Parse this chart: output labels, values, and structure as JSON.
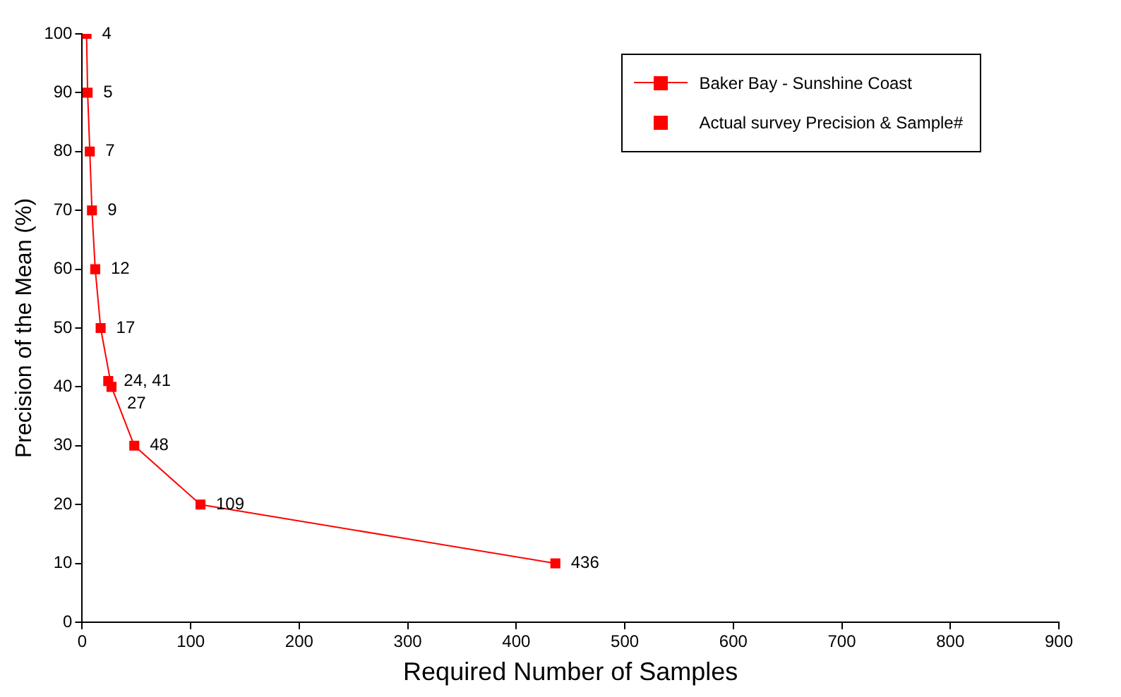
{
  "chart_data": {
    "type": "line",
    "xlabel": "Required Number of Samples",
    "ylabel": "Precision of the Mean (%)",
    "xlim": [
      0,
      900
    ],
    "xticks": [
      0,
      100,
      200,
      300,
      400,
      500,
      600,
      700,
      800,
      900
    ],
    "ylim": [
      0,
      100
    ],
    "yticks": [
      0,
      10,
      20,
      30,
      40,
      50,
      60,
      70,
      80,
      90,
      100
    ],
    "grid": false,
    "legend": "top right",
    "marker": "square",
    "line_style": "solid",
    "series": [
      {
        "name": "Baker Bay - Sunshine Coast",
        "color": "#ff0000",
        "x": [
          4,
          5,
          7,
          9,
          12,
          17,
          27,
          48,
          109,
          436
        ],
        "values": [
          100,
          90,
          80,
          70,
          60,
          50,
          40,
          30,
          20,
          10
        ]
      },
      {
        "name": "Actual survey Precision & Sample#",
        "type": "scatter",
        "color": "#ff0000",
        "x": [
          24
        ],
        "values": [
          41
        ]
      }
    ],
    "annotations": [
      {
        "text": "4",
        "x": 4,
        "y": 100
      },
      {
        "text": "5",
        "x": 5,
        "y": 90
      },
      {
        "text": "7",
        "x": 7,
        "y": 80
      },
      {
        "text": "9",
        "x": 9,
        "y": 70
      },
      {
        "text": "12",
        "x": 12,
        "y": 60
      },
      {
        "text": "17",
        "x": 17,
        "y": 50
      },
      {
        "text": "24, 41",
        "x": 24,
        "y": 41
      },
      {
        "text": "27",
        "x": 27,
        "y": 40
      },
      {
        "text": "48",
        "x": 48,
        "y": 30
      },
      {
        "text": "109",
        "x": 109,
        "y": 20
      },
      {
        "text": "436",
        "x": 436,
        "y": 10
      }
    ]
  }
}
